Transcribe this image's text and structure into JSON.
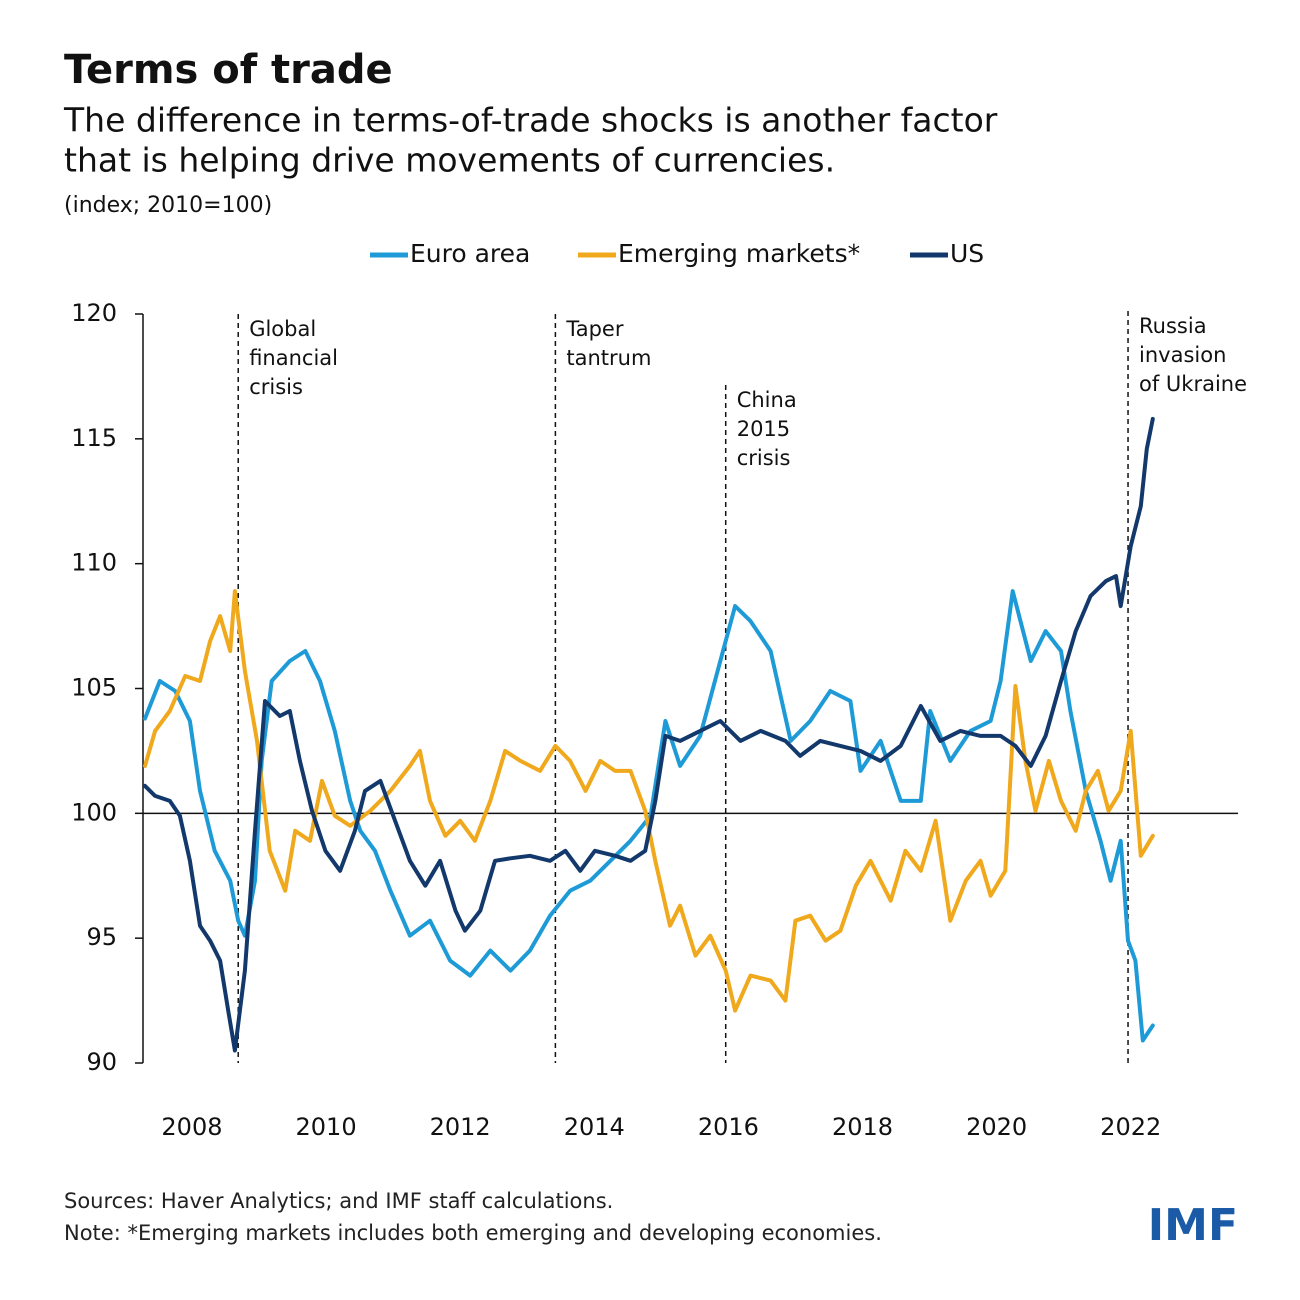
{
  "chart_data": {
    "type": "line",
    "title": "Terms of trade",
    "subtitle": [
      "The difference in terms-of-trade shocks is another factor",
      "that is helping drive movements of currencies."
    ],
    "unit_note": "(index; 2010=100)",
    "xlim": [
      2007.27,
      2023.6
    ],
    "xticks": [
      2008,
      2010,
      2012,
      2014,
      2016,
      2018,
      2020,
      2022
    ],
    "ylim": [
      90,
      120
    ],
    "yticks": [
      90,
      95,
      100,
      105,
      110,
      115,
      120
    ],
    "reference_line": 100,
    "series": [
      {
        "name": "Euro area",
        "color": "#1e9bd7",
        "x": [
          2007.3,
          2007.52,
          2007.75,
          2007.97,
          2008.12,
          2008.34,
          2008.57,
          2008.69,
          2008.79,
          2008.94,
          2009.04,
          2009.19,
          2009.46,
          2009.69,
          2009.91,
          2010.13,
          2010.36,
          2010.51,
          2010.73,
          2010.96,
          2011.25,
          2011.55,
          2011.85,
          2012.15,
          2012.45,
          2012.75,
          2013.04,
          2013.34,
          2013.64,
          2013.94,
          2014.24,
          2014.54,
          2014.84,
          2015.06,
          2015.28,
          2015.58,
          2015.88,
          2016.1,
          2016.33,
          2016.63,
          2016.93,
          2017.22,
          2017.52,
          2017.82,
          2017.97,
          2018.27,
          2018.57,
          2018.87,
          2019.01,
          2019.31,
          2019.61,
          2019.91,
          2020.06,
          2020.24,
          2020.51,
          2020.73,
          2020.96,
          2021.1,
          2021.33,
          2021.55,
          2021.7,
          2021.85,
          2021.96,
          2022.07,
          2022.18,
          2022.33
        ],
        "values": [
          103.8,
          105.3,
          104.9,
          103.7,
          100.9,
          98.5,
          97.3,
          95.7,
          95.1,
          97.3,
          102.1,
          105.3,
          106.1,
          106.5,
          105.3,
          103.3,
          100.5,
          99.3,
          98.5,
          96.9,
          95.1,
          95.7,
          94.1,
          93.5,
          94.5,
          93.7,
          94.5,
          95.9,
          96.9,
          97.3,
          98.1,
          98.9,
          99.9,
          103.7,
          101.9,
          103.1,
          106.1,
          108.3,
          107.7,
          106.5,
          102.9,
          103.7,
          104.9,
          104.5,
          101.7,
          102.9,
          100.5,
          100.5,
          104.1,
          102.1,
          103.3,
          103.7,
          105.3,
          108.9,
          106.1,
          107.3,
          106.5,
          104.1,
          100.9,
          98.9,
          97.3,
          98.9,
          94.9,
          94.1,
          90.9,
          91.5
        ]
      },
      {
        "name": "Emerging markets*",
        "color": "#f0a81c",
        "x": [
          2007.3,
          2007.45,
          2007.67,
          2007.9,
          2008.12,
          2008.27,
          2008.42,
          2008.57,
          2008.64,
          2008.79,
          2008.97,
          2009.16,
          2009.39,
          2009.54,
          2009.76,
          2009.94,
          2010.13,
          2010.36,
          2010.66,
          2010.96,
          2011.25,
          2011.4,
          2011.55,
          2011.78,
          2012.0,
          2012.22,
          2012.45,
          2012.67,
          2012.9,
          2013.19,
          2013.42,
          2013.64,
          2013.87,
          2014.09,
          2014.31,
          2014.54,
          2014.76,
          2014.91,
          2015.13,
          2015.28,
          2015.51,
          2015.73,
          2015.96,
          2016.1,
          2016.33,
          2016.63,
          2016.85,
          2017.0,
          2017.22,
          2017.45,
          2017.67,
          2017.9,
          2018.12,
          2018.42,
          2018.64,
          2018.87,
          2019.09,
          2019.31,
          2019.54,
          2019.76,
          2019.91,
          2020.13,
          2020.28,
          2020.43,
          2020.58,
          2020.78,
          2020.96,
          2021.18,
          2021.33,
          2021.51,
          2021.67,
          2021.85,
          2022.0,
          2022.15,
          2022.33
        ],
        "values": [
          101.9,
          103.3,
          104.1,
          105.5,
          105.3,
          106.9,
          107.9,
          106.5,
          108.9,
          105.7,
          102.9,
          98.5,
          96.9,
          99.3,
          98.9,
          101.3,
          99.9,
          99.5,
          100.1,
          100.9,
          101.9,
          102.5,
          100.5,
          99.1,
          99.7,
          98.9,
          100.5,
          102.5,
          102.1,
          101.7,
          102.7,
          102.1,
          100.9,
          102.1,
          101.7,
          101.7,
          100.1,
          98.1,
          95.5,
          96.3,
          94.3,
          95.1,
          93.7,
          92.1,
          93.5,
          93.3,
          92.5,
          95.7,
          95.9,
          94.9,
          95.3,
          97.1,
          98.1,
          96.5,
          98.5,
          97.7,
          99.7,
          95.7,
          97.3,
          98.1,
          96.7,
          97.7,
          105.1,
          102.1,
          100.1,
          102.1,
          100.5,
          99.3,
          100.9,
          101.7,
          100.1,
          100.9,
          103.3,
          98.3,
          99.1
        ]
      },
      {
        "name": "US",
        "color": "#13386b",
        "x": [
          2007.3,
          2007.45,
          2007.67,
          2007.82,
          2007.97,
          2008.12,
          2008.27,
          2008.42,
          2008.54,
          2008.64,
          2008.79,
          2008.94,
          2009.09,
          2009.31,
          2009.46,
          2009.61,
          2009.79,
          2009.99,
          2010.21,
          2010.43,
          2010.58,
          2010.81,
          2011.03,
          2011.25,
          2011.48,
          2011.7,
          2011.93,
          2012.07,
          2012.3,
          2012.52,
          2012.75,
          2013.04,
          2013.34,
          2013.57,
          2013.79,
          2014.01,
          2014.31,
          2014.54,
          2014.76,
          2014.91,
          2015.06,
          2015.28,
          2015.58,
          2015.88,
          2016.18,
          2016.48,
          2016.85,
          2017.07,
          2017.37,
          2017.67,
          2017.97,
          2018.27,
          2018.57,
          2018.87,
          2019.16,
          2019.46,
          2019.76,
          2020.06,
          2020.28,
          2020.51,
          2020.73,
          2020.96,
          2021.18,
          2021.4,
          2021.63,
          2021.78,
          2021.85,
          2022.0,
          2022.15,
          2022.24,
          2022.33
        ],
        "values": [
          101.1,
          100.7,
          100.5,
          99.9,
          98.1,
          95.5,
          94.9,
          94.1,
          92.1,
          90.5,
          93.7,
          99.3,
          104.5,
          103.9,
          104.1,
          102.1,
          100.1,
          98.5,
          97.7,
          99.3,
          100.9,
          101.3,
          99.7,
          98.1,
          97.1,
          98.1,
          96.1,
          95.3,
          96.1,
          98.1,
          98.2,
          98.3,
          98.1,
          98.5,
          97.7,
          98.5,
          98.3,
          98.1,
          98.5,
          100.5,
          103.1,
          102.9,
          103.3,
          103.7,
          102.9,
          103.3,
          102.9,
          102.3,
          102.9,
          102.7,
          102.5,
          102.1,
          102.7,
          104.3,
          102.9,
          103.3,
          103.1,
          103.1,
          102.7,
          101.9,
          103.1,
          105.3,
          107.3,
          108.7,
          109.3,
          109.5,
          108.3,
          110.7,
          112.3,
          114.6,
          115.8
        ]
      }
    ],
    "annotations": [
      {
        "x": 2008.69,
        "label": [
          "Global",
          "financial",
          "crisis"
        ]
      },
      {
        "x": 2013.42,
        "label": [
          "Taper",
          "tantrum"
        ]
      },
      {
        "x": 2015.96,
        "label": [
          "China",
          "2015",
          "crisis"
        ]
      },
      {
        "x": 2021.96,
        "label": [
          "Russia",
          "invasion",
          "of Ukraine"
        ]
      }
    ],
    "sources": "Sources: Haver Analytics; and IMF staff calculations.",
    "note": "Note: *Emerging markets includes both emerging and developing economies.",
    "logo": "IMF"
  }
}
